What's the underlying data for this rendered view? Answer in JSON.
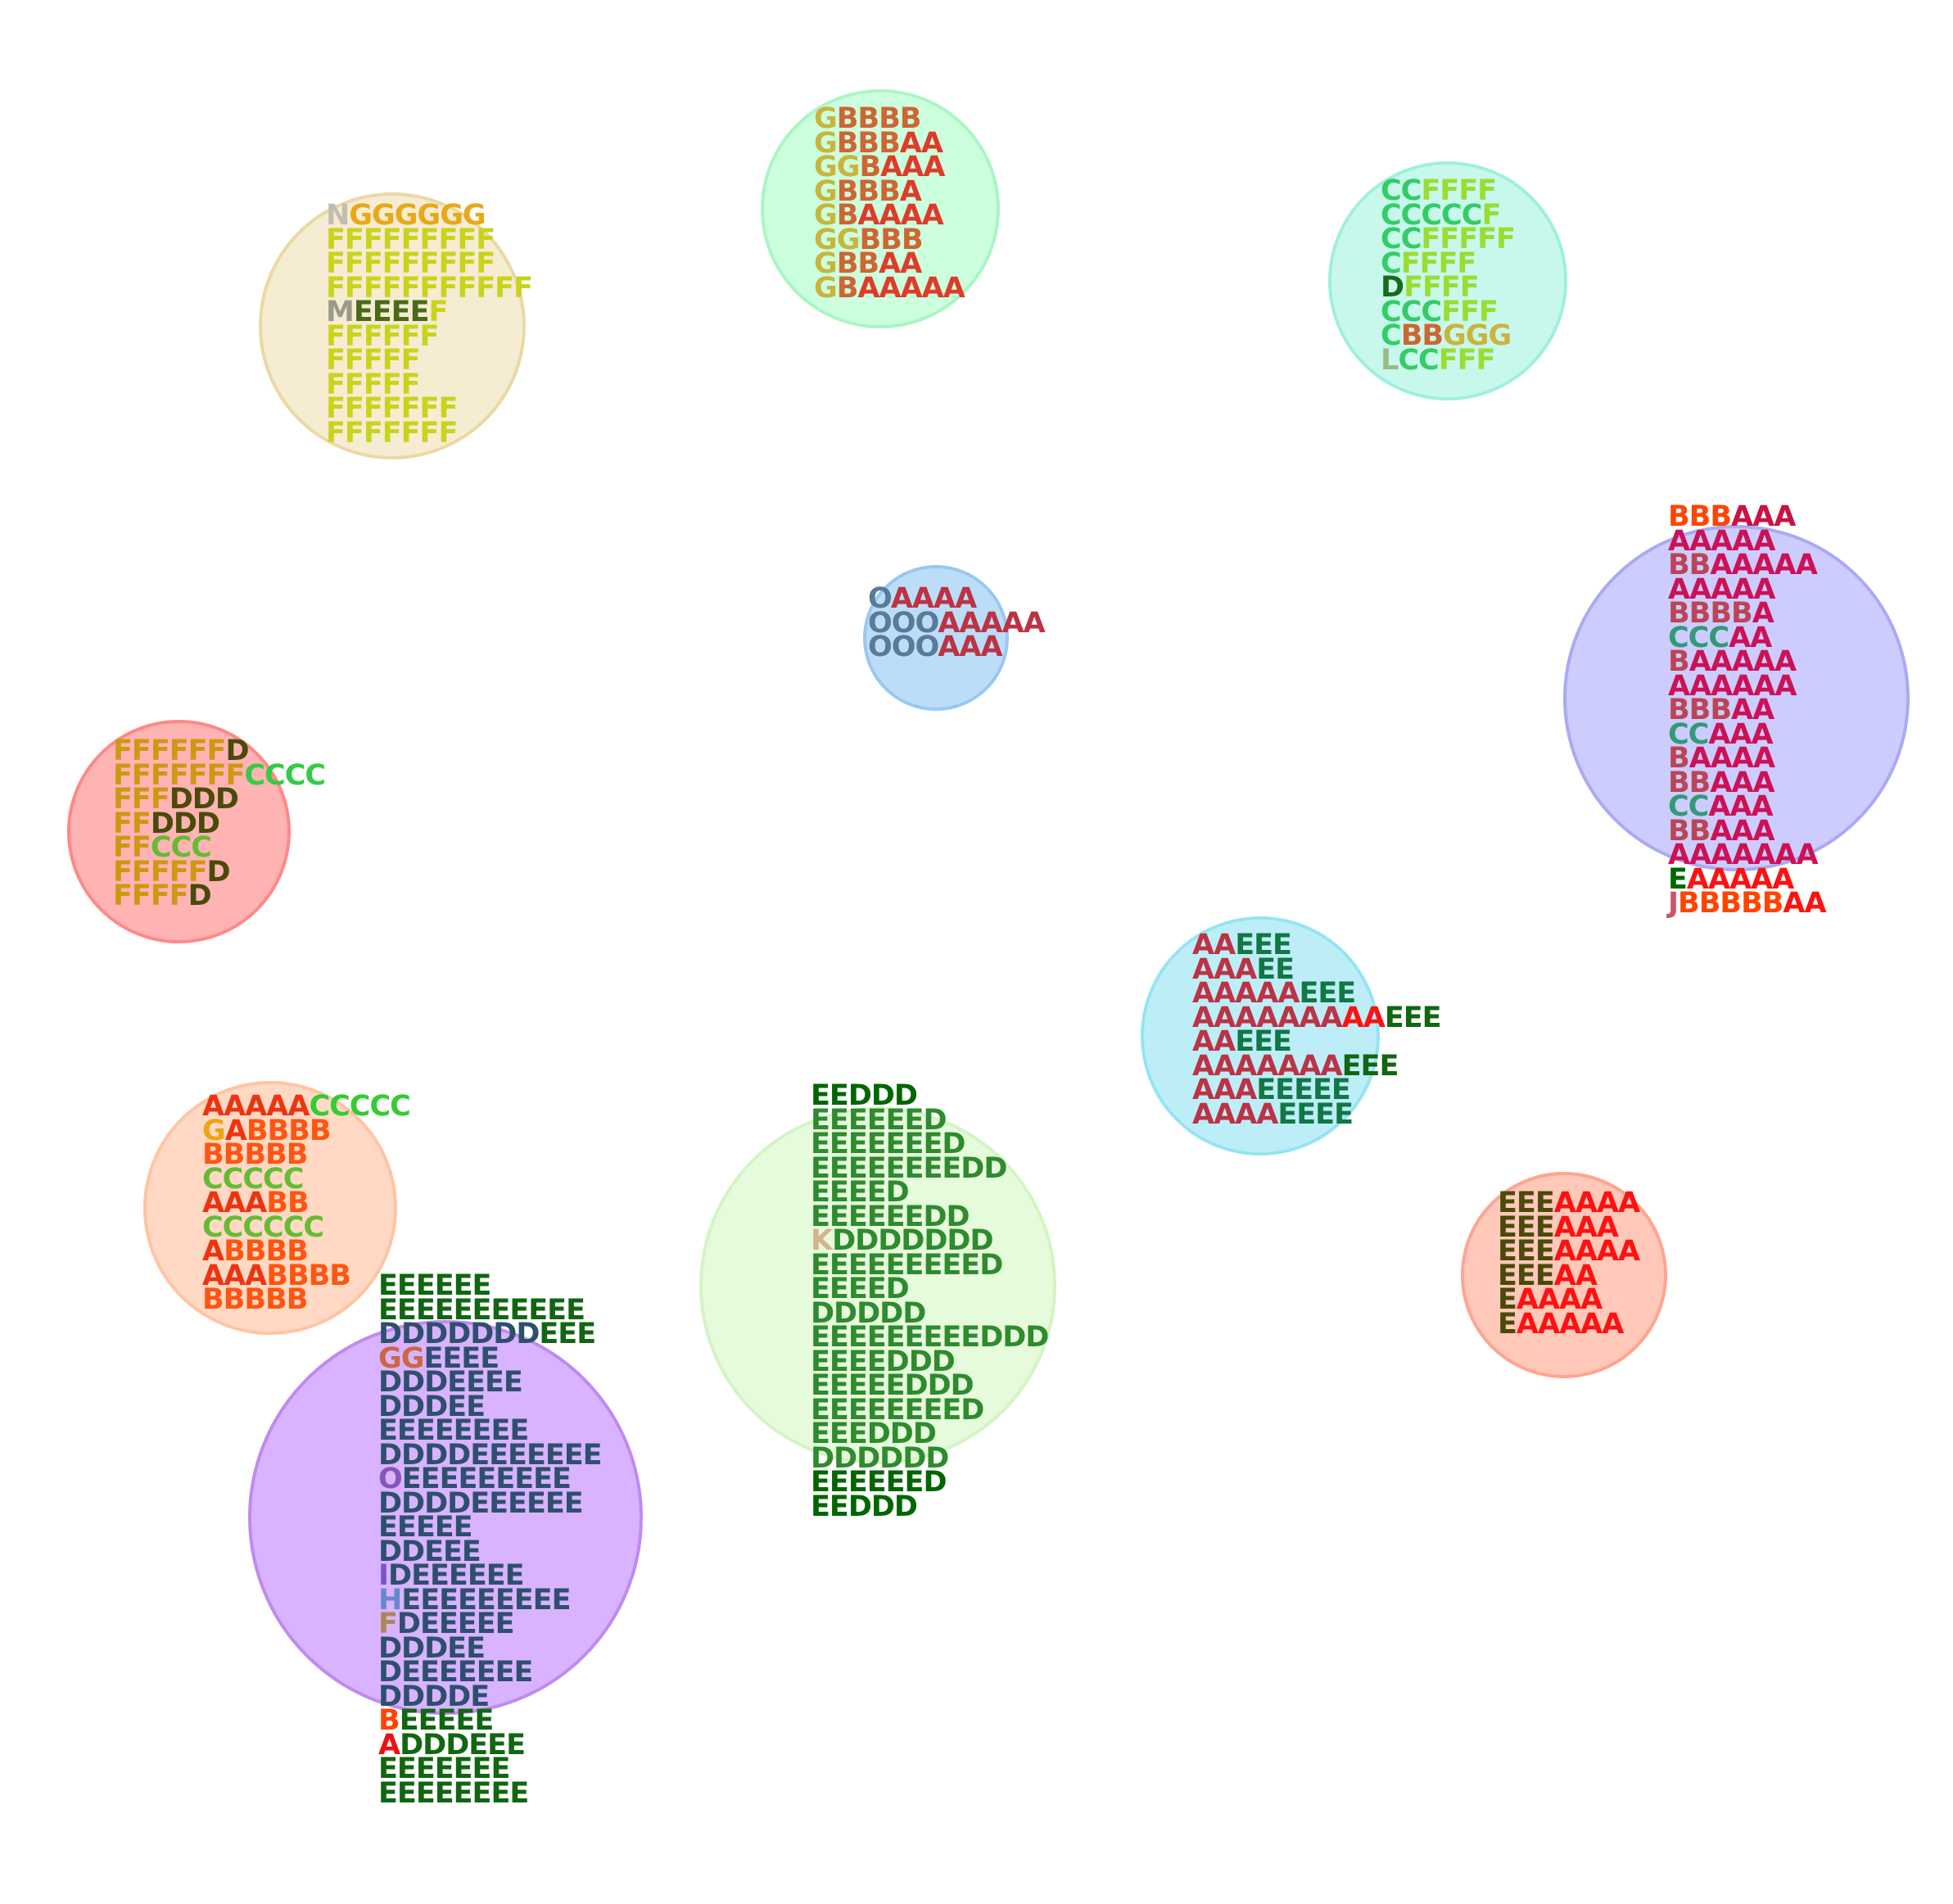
{
  "clusters": [
    {
      "id": "c1",
      "fill": "#f5ecd2",
      "stroke": "#ead9a4",
      "lines": [
        [
          [
            "N",
            "#c2bdb0"
          ],
          [
            "GGGGGG",
            "#e8a818"
          ]
        ],
        [
          [
            "FFFFFFFFF",
            "#c8d41c"
          ]
        ],
        [
          [
            "FFFFFFFFF",
            "#c8d41c"
          ]
        ],
        [
          [
            "FFFFFFFFFFF",
            "#c8d41c"
          ]
        ],
        [
          [
            "M",
            "#9a9a8a"
          ],
          [
            "EEEE",
            "#4a6a1a"
          ],
          [
            "F",
            "#c8d41c"
          ]
        ],
        [
          [
            "FFFFFF",
            "#c8d41c"
          ]
        ],
        [
          [
            "FFFFF",
            "#c8d41c"
          ]
        ],
        [
          [
            "FFFFF",
            "#c8d41c"
          ]
        ],
        [
          [
            "FFFFFFF",
            "#c8d41c"
          ]
        ],
        [
          [
            "FFFFFFF",
            "#c8d41c"
          ]
        ]
      ]
    },
    {
      "id": "c2",
      "fill": "#ccffdd",
      "stroke": "#aaf5c4",
      "lines": [
        [
          [
            "G",
            "#c9b43c"
          ],
          [
            "BBBB",
            "#cc6633"
          ]
        ],
        [
          [
            "G",
            "#c9b43c"
          ],
          [
            "BBB",
            "#cc6633"
          ],
          [
            "AA",
            "#dd3c2a"
          ]
        ],
        [
          [
            "GG",
            "#c9b43c"
          ],
          [
            "B",
            "#cc6633"
          ],
          [
            "AAA",
            "#dd3c2a"
          ]
        ],
        [
          [
            "G",
            "#c9b43c"
          ],
          [
            "BBB",
            "#cc6633"
          ],
          [
            "A",
            "#dd3c2a"
          ]
        ],
        [
          [
            "G",
            "#c9b43c"
          ],
          [
            "B",
            "#cc6633"
          ],
          [
            "AAAA",
            "#dd3c2a"
          ]
        ],
        [
          [
            "GG",
            "#c9b43c"
          ],
          [
            "BBB",
            "#cc6633"
          ]
        ],
        [
          [
            "G",
            "#c9b43c"
          ],
          [
            "BB",
            "#cc6633"
          ],
          [
            "AA",
            "#dd3c2a"
          ]
        ],
        [
          [
            "G",
            "#c9b43c"
          ],
          [
            "B",
            "#cc6633"
          ],
          [
            "AAAAA",
            "#dd3c2a"
          ]
        ]
      ]
    },
    {
      "id": "c3",
      "fill": "#c8f8ec",
      "stroke": "#9ef0dc",
      "lines": [
        [
          [
            "CC",
            "#33cc66"
          ],
          [
            "FFFF",
            "#99dd33"
          ]
        ],
        [
          [
            "CCCCC",
            "#33cc66"
          ],
          [
            "F",
            "#99dd33"
          ]
        ],
        [
          [
            "CC",
            "#33cc66"
          ],
          [
            "FFFFF",
            "#99dd33"
          ]
        ],
        [
          [
            "C",
            "#33cc66"
          ],
          [
            "FFFF",
            "#99dd33"
          ]
        ],
        [
          [
            "D",
            "#1a6a1a"
          ],
          [
            "FFFF",
            "#99dd33"
          ]
        ],
        [
          [
            "CCC",
            "#33cc66"
          ],
          [
            "FFF",
            "#99dd33"
          ]
        ],
        [
          [
            "C",
            "#33cc66"
          ],
          [
            "BB",
            "#cc6633"
          ],
          [
            "GGG",
            "#c9b43c"
          ]
        ],
        [
          [
            "L",
            "#99bb88"
          ],
          [
            "CC",
            "#33cc66"
          ],
          [
            "FFF",
            "#99dd33"
          ]
        ]
      ]
    },
    {
      "id": "c4",
      "fill": "#bbddf8",
      "stroke": "#99c8f0",
      "lines": [
        [
          [
            "O",
            "#5a7a9a"
          ],
          [
            "AAAA",
            "#bb3344"
          ]
        ],
        [
          [
            "OOO",
            "#5a7a9a"
          ],
          [
            "AAAAA",
            "#bb3344"
          ]
        ],
        [
          [
            "OOO",
            "#5a7a9a"
          ],
          [
            "AAA",
            "#bb3344"
          ]
        ]
      ]
    },
    {
      "id": "c5",
      "fill": "#ccccff",
      "stroke": "#aaaaf2",
      "lines": [
        [
          [
            "BBB",
            "#ff4400"
          ],
          [
            "AAA",
            "#cc1144"
          ]
        ],
        [
          [
            "AAAAA",
            "#cc1155"
          ]
        ],
        [
          [
            "BB",
            "#bb4455"
          ],
          [
            "AAAAA",
            "#cc1155"
          ]
        ],
        [
          [
            "AAAAA",
            "#cc1155"
          ]
        ],
        [
          [
            "BBBB",
            "#bb4455"
          ],
          [
            "A",
            "#cc1155"
          ]
        ],
        [
          [
            "CCC",
            "#339977"
          ],
          [
            "AA",
            "#cc1155"
          ]
        ],
        [
          [
            "B",
            "#bb4455"
          ],
          [
            "AAAAA",
            "#cc1155"
          ]
        ],
        [
          [
            "AAAAAA",
            "#cc1155"
          ]
        ],
        [
          [
            "BBB",
            "#bb4455"
          ],
          [
            "AA",
            "#cc1155"
          ]
        ],
        [
          [
            "CC",
            "#339977"
          ],
          [
            "AAA",
            "#cc1155"
          ]
        ],
        [
          [
            "B",
            "#bb4455"
          ],
          [
            "AAAA",
            "#cc1155"
          ]
        ],
        [
          [
            "BB",
            "#bb4455"
          ],
          [
            "AAA",
            "#cc1155"
          ]
        ],
        [
          [
            "CC",
            "#339977"
          ],
          [
            "AAA",
            "#cc1155"
          ]
        ],
        [
          [
            "BB",
            "#bb4455"
          ],
          [
            "AAA",
            "#cc1155"
          ]
        ],
        [
          [
            "AAAAAAA",
            "#cc1155"
          ]
        ],
        [
          [
            "E",
            "#006600"
          ],
          [
            "AAAAA",
            "#ff1111"
          ]
        ],
        [
          [
            "J",
            "#cc5566"
          ],
          [
            "BBBBB",
            "#ff4400"
          ],
          [
            "AA",
            "#ff1111"
          ]
        ]
      ]
    },
    {
      "id": "c6",
      "fill": "#ffb3b3",
      "stroke": "#ff8888",
      "lines": [
        [
          [
            "FFFFFF",
            "#cc9911"
          ],
          [
            "D",
            "#4a4a0a"
          ]
        ],
        [
          [
            "FFFFFFF",
            "#cc9911"
          ],
          [
            "CCCC",
            "#33cc44"
          ]
        ],
        [
          [
            "FFF",
            "#cc9911"
          ],
          [
            "DDD",
            "#4a4a0a"
          ]
        ],
        [
          [
            "FF",
            "#cc9911"
          ],
          [
            "DDD",
            "#4a4a0a"
          ]
        ],
        [
          [
            "FF",
            "#cc9911"
          ],
          [
            "CCC",
            "#66bb33"
          ]
        ],
        [
          [
            "FFFFF",
            "#cc9911"
          ],
          [
            "D",
            "#4a4a0a"
          ]
        ],
        [
          [
            "FFFF",
            "#cc9911"
          ],
          [
            "D",
            "#4a4a0a"
          ]
        ]
      ]
    },
    {
      "id": "c7",
      "fill": "#bdeef8",
      "stroke": "#96e4f2",
      "lines": [
        [
          [
            "AA",
            "#bb3344"
          ],
          [
            "EEE",
            "#117744"
          ]
        ],
        [
          [
            "AAA",
            "#bb3344"
          ],
          [
            "EE",
            "#117744"
          ]
        ],
        [
          [
            "AAAAA",
            "#bb3344"
          ],
          [
            "EEE",
            "#117744"
          ]
        ],
        [
          [
            "AAAAAAA",
            "#bb3344"
          ],
          [
            "AA",
            "#ff1111"
          ],
          [
            "EEE",
            "#116611"
          ]
        ],
        [
          [
            "AA",
            "#bb3344"
          ],
          [
            "EEE",
            "#117744"
          ]
        ],
        [
          [
            "AAAAAAA",
            "#bb3344"
          ],
          [
            "EEE",
            "#116611"
          ]
        ],
        [
          [
            "AAA",
            "#bb3344"
          ],
          [
            "EEEEE",
            "#117744"
          ]
        ],
        [
          [
            "AAAA",
            "#bb3344"
          ],
          [
            "EEEE",
            "#117744"
          ]
        ]
      ]
    },
    {
      "id": "c8",
      "fill": "#ffd9c4",
      "stroke": "#ffc4a4",
      "lines": [
        [
          [
            "AAAAA",
            "#ee3311"
          ],
          [
            "CCCCC",
            "#33cc33"
          ]
        ],
        [
          [
            "G",
            "#eea411"
          ],
          [
            "A",
            "#ee3311"
          ],
          [
            "BBBB",
            "#ff5511"
          ]
        ],
        [
          [
            "BBBBB",
            "#ff5511"
          ]
        ],
        [
          [
            "CCCCC",
            "#66bb33"
          ]
        ],
        [
          [
            "AAA",
            "#ee3311"
          ],
          [
            "BB",
            "#ff5511"
          ]
        ],
        [
          [
            "CCCCCC",
            "#66bb33"
          ]
        ],
        [
          [
            "A",
            "#ee3311"
          ],
          [
            "BBBB",
            "#ff5511"
          ]
        ],
        [
          [
            "AAA",
            "#ee3311"
          ],
          [
            "BBBB",
            "#ff5511"
          ]
        ],
        [
          [
            "BBBBB",
            "#ff5511"
          ]
        ]
      ]
    },
    {
      "id": "c9",
      "fill": "#e6fadc",
      "stroke": "#d4f4c4",
      "lines": [
        [
          [
            "EE",
            "#006600"
          ],
          [
            "DDD",
            "#006600"
          ]
        ],
        [
          [
            "EEEEEE",
            "#2e8b2e"
          ],
          [
            "D",
            "#2e8b2e"
          ]
        ],
        [
          [
            "EEEEEEE",
            "#2e8b2e"
          ],
          [
            "D",
            "#2e8b2e"
          ]
        ],
        [
          [
            "EEEEEEEE",
            "#2e8b2e"
          ],
          [
            "DD",
            "#2e8b2e"
          ]
        ],
        [
          [
            "EEEE",
            "#2e8b2e"
          ],
          [
            "D",
            "#2e8b2e"
          ]
        ],
        [
          [
            "EEEEEE",
            "#2e8b2e"
          ],
          [
            "DD",
            "#2e8b2e"
          ]
        ],
        [
          [
            "K",
            "#d4b48c"
          ],
          [
            "DDDDDDD",
            "#2e8b2e"
          ]
        ],
        [
          [
            "EEEEEEEEE",
            "#2e8b2e"
          ],
          [
            "D",
            "#2e8b2e"
          ]
        ],
        [
          [
            "EEEE",
            "#2e8b2e"
          ],
          [
            "D",
            "#2e8b2e"
          ]
        ],
        [
          [
            "DDDDD",
            "#2e8b2e"
          ]
        ],
        [
          [
            "EEEEEEEEE",
            "#2e8b2e"
          ],
          [
            "DDD",
            "#2e8b2e"
          ]
        ],
        [
          [
            "EEEE",
            "#2e8b2e"
          ],
          [
            "DDD",
            "#2e8b2e"
          ]
        ],
        [
          [
            "EEEEE",
            "#2e8b2e"
          ],
          [
            "DDD",
            "#2e8b2e"
          ]
        ],
        [
          [
            "EEEEEEEE",
            "#2e8b2e"
          ],
          [
            "D",
            "#2e8b2e"
          ]
        ],
        [
          [
            "EEE",
            "#2e8b2e"
          ],
          [
            "DDD",
            "#2e8b2e"
          ]
        ],
        [
          [
            "DDDDDD",
            "#2e8b2e"
          ]
        ],
        [
          [
            "EEEEEE",
            "#006600"
          ],
          [
            "D",
            "#006600"
          ]
        ],
        [
          [
            "EE",
            "#006600"
          ],
          [
            "DDD",
            "#006600"
          ]
        ]
      ]
    },
    {
      "id": "c10",
      "fill": "#d9b3ff",
      "stroke": "#c08af0",
      "lines": [
        [
          [
            "EEEEEE",
            "#116611"
          ]
        ],
        [
          [
            "EEEEEEEEEEE",
            "#116611"
          ]
        ],
        [
          [
            "DDDDDDD",
            "#2f4f6f"
          ],
          [
            "EEE",
            "#116611"
          ]
        ],
        [
          [
            "GG",
            "#cc6644"
          ],
          [
            "EEEE",
            "#2f4f6f"
          ]
        ],
        [
          [
            "DDD",
            "#2f4f6f"
          ],
          [
            "EEEE",
            "#2f4f6f"
          ]
        ],
        [
          [
            "DDD",
            "#2f4f6f"
          ],
          [
            "EE",
            "#2f4f6f"
          ]
        ],
        [
          [
            "EEEEEEEE",
            "#2f4f6f"
          ]
        ],
        [
          [
            "DDDD",
            "#2f4f6f"
          ],
          [
            "EEEEEEE",
            "#2f4f6f"
          ]
        ],
        [
          [
            "O",
            "#8855bb"
          ],
          [
            "EEEEEEEEE",
            "#2f4f6f"
          ]
        ],
        [
          [
            "DDDD",
            "#2f4f6f"
          ],
          [
            "EEEEEE",
            "#2f4f6f"
          ]
        ],
        [
          [
            "EEEEE",
            "#2f4f6f"
          ]
        ],
        [
          [
            "DD",
            "#2f4f6f"
          ],
          [
            "EEE",
            "#2f4f6f"
          ]
        ],
        [
          [
            "I",
            "#7755cc"
          ],
          [
            "D",
            "#2f4f6f"
          ],
          [
            "EEEEEE",
            "#2f4f6f"
          ]
        ],
        [
          [
            "H",
            "#6688cc"
          ],
          [
            "EEEEEEEEE",
            "#2f4f6f"
          ]
        ],
        [
          [
            "F",
            "#aa8855"
          ],
          [
            "D",
            "#2f4f6f"
          ],
          [
            "EEEEE",
            "#2f4f6f"
          ]
        ],
        [
          [
            "DDD",
            "#2f4f6f"
          ],
          [
            "EE",
            "#2f4f6f"
          ]
        ],
        [
          [
            "D",
            "#2f4f6f"
          ],
          [
            "EEEEEEE",
            "#2f4f6f"
          ]
        ],
        [
          [
            "DDDD",
            "#2f4f6f"
          ],
          [
            "E",
            "#2f4f6f"
          ]
        ],
        [
          [
            "B",
            "#ff4400"
          ],
          [
            "EEEEE",
            "#116611"
          ]
        ],
        [
          [
            "A",
            "#ee1111"
          ],
          [
            "DDDEEE",
            "#116611"
          ]
        ],
        [
          [
            "EEEEEEE",
            "#116611"
          ]
        ],
        [
          [
            "EEEEEEEE",
            "#116611"
          ]
        ]
      ]
    },
    {
      "id": "c11",
      "fill": "#ffc8b8",
      "stroke": "#ffa490",
      "lines": [
        [
          [
            "EEE",
            "#4a4a0a"
          ],
          [
            "AAAA",
            "#ff1111"
          ]
        ],
        [
          [
            "EEE",
            "#4a4a0a"
          ],
          [
            "AAA",
            "#ff1111"
          ]
        ],
        [
          [
            "EEE",
            "#4a4a0a"
          ],
          [
            "AAAA",
            "#ff1111"
          ]
        ],
        [
          [
            "EEE",
            "#4a4a0a"
          ],
          [
            "AA",
            "#ff1111"
          ]
        ],
        [
          [
            "E",
            "#4a4a0a"
          ],
          [
            "AAAA",
            "#ff1111"
          ]
        ],
        [
          [
            "E",
            "#4a4a0a"
          ],
          [
            "AAAAA",
            "#ff1111"
          ]
        ]
      ]
    }
  ]
}
